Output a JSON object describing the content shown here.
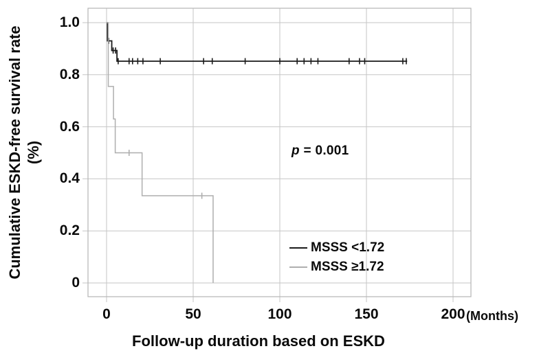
{
  "chart_data": {
    "type": "line",
    "subtype": "kaplan-meier-step-function",
    "title": "",
    "xlabel": "Follow-up duration based on ESKD",
    "x_unit_label": "(Months)",
    "ylabel": "Cumulative ESKD-free survival rate",
    "ylabel_line2": "(%)",
    "xlim": [
      0,
      200
    ],
    "ylim": [
      0,
      1.0
    ],
    "x_tick_labels": [
      "0",
      "50",
      "100",
      "150",
      "200"
    ],
    "y_tick_labels": [
      "0",
      "0.2",
      "0.4",
      "0.6",
      "0.8",
      "1.0"
    ],
    "grid": true,
    "legend_position": "inside-lower-right",
    "annotation": {
      "italic_part": "p",
      "text_part": " = 0.001"
    },
    "colors": {
      "grid": "#c6c6c6",
      "frame": "#b5b5b5",
      "text": "#0a0a0a",
      "series_black": "#1a1a1a",
      "series_gray": "#aeaeae"
    },
    "series": [
      {
        "name": "MSSS <1.72",
        "color": "#1a1a1a",
        "width": 1.8,
        "steps": [
          [
            0,
            1.0
          ],
          [
            0.5,
            0.93
          ],
          [
            3,
            0.893
          ],
          [
            6,
            0.852
          ]
        ],
        "end": 173.5,
        "censor_marks": [
          [
            1.2,
            0.93
          ],
          [
            3.8,
            0.893
          ],
          [
            5.2,
            0.893
          ],
          [
            6.7,
            0.852
          ],
          [
            13,
            0.852
          ],
          [
            15,
            0.852
          ],
          [
            18,
            0.852
          ],
          [
            21,
            0.852
          ],
          [
            31,
            0.852
          ],
          [
            56,
            0.852
          ],
          [
            61,
            0.852
          ],
          [
            80,
            0.852
          ],
          [
            100,
            0.852
          ],
          [
            110,
            0.852
          ],
          [
            114,
            0.852
          ],
          [
            118,
            0.852
          ],
          [
            122,
            0.852
          ],
          [
            140,
            0.852
          ],
          [
            146,
            0.852
          ],
          [
            149,
            0.852
          ],
          [
            171,
            0.852
          ],
          [
            173,
            0.852
          ]
        ]
      },
      {
        "name": "MSSS ≥1.72",
        "color": "#aeaeae",
        "width": 1.5,
        "steps": [
          [
            0,
            1.0
          ],
          [
            1,
            0.755
          ],
          [
            4,
            0.63
          ],
          [
            5,
            0.5
          ],
          [
            20.5,
            0.335
          ],
          [
            61.5,
            0
          ]
        ],
        "end": 61.5,
        "censor_marks": [
          [
            13,
            0.5
          ],
          [
            55,
            0.335
          ]
        ]
      }
    ]
  }
}
